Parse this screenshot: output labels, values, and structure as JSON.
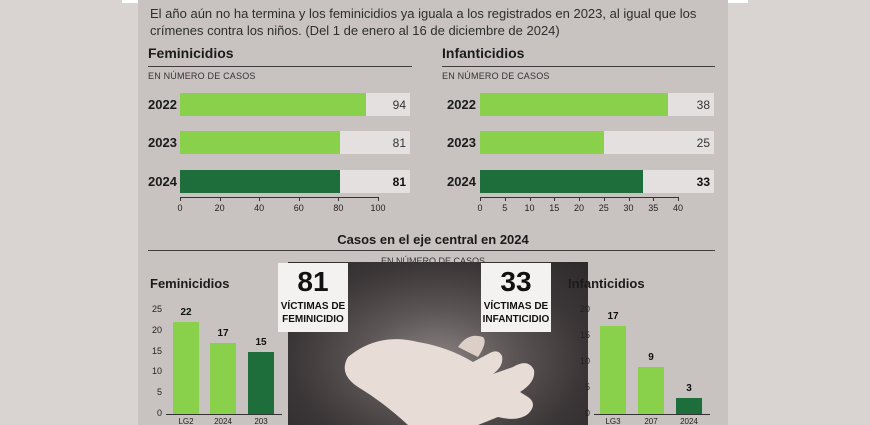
{
  "intro": "El año aún no ha termina y los feminicidios ya iguala a los registrados en 2023, al igual que los crímenes contra los niños. (Del 1 de enero al 16 de diciembre de 2024)",
  "chart_data": [
    {
      "type": "bar",
      "orientation": "horizontal",
      "title": "Feminicidios",
      "subtitle": "EN NÚMERO DE CASOS",
      "categories": [
        "2022",
        "2023",
        "2024"
      ],
      "values": [
        94,
        81,
        81
      ],
      "xlim": [
        0,
        100
      ],
      "ticks": [
        0,
        20,
        40,
        60,
        80,
        100
      ],
      "colors": [
        "#89d14a",
        "#89d14a",
        "#1e6e3b"
      ]
    },
    {
      "type": "bar",
      "orientation": "horizontal",
      "title": "Infanticidios",
      "subtitle": "EN NÚMERO DE CASOS",
      "categories": [
        "2022",
        "2023",
        "2024"
      ],
      "values": [
        38,
        25,
        33
      ],
      "xlim": [
        0,
        40
      ],
      "ticks": [
        0,
        5,
        10,
        15,
        20,
        25,
        30,
        35,
        40
      ],
      "colors": [
        "#89d14a",
        "#89d14a",
        "#1e6e3b"
      ]
    },
    {
      "type": "bar",
      "orientation": "vertical",
      "title": "Feminicidios",
      "values": [
        22,
        17,
        15
      ],
      "categories": [
        "LG2",
        "2024",
        "203"
      ],
      "ylim": [
        0,
        25
      ],
      "ticks": [
        0,
        5,
        10,
        15,
        20,
        25
      ],
      "colors": [
        "#89d14a",
        "#89d14a",
        "#1e6e3b"
      ]
    },
    {
      "type": "bar",
      "orientation": "vertical",
      "title": "Infanticidios",
      "values": [
        17,
        9,
        3
      ],
      "categories": [
        "LG3",
        "207",
        "2024"
      ],
      "ylim": [
        0,
        20
      ],
      "ticks": [
        0,
        5,
        10,
        15,
        20
      ],
      "colors": [
        "#89d14a",
        "#89d14a",
        "#1e6e3b"
      ]
    }
  ],
  "center": {
    "title": "Casos en el eje central en 2024",
    "unit": "EN NÚMERO DE CASOS",
    "card_fem": {
      "number": "81",
      "label_1": "VÍCTIMAS DE",
      "label_2": "FEMINICIDIO"
    },
    "card_inf": {
      "number": "33",
      "label_1": "VÍCTIMAS DE",
      "label_2": "INFANTICIDIO"
    }
  },
  "colors": {
    "light_green": "#89d14a",
    "dark_green": "#1e6e3b",
    "panel": "#c8c3c1"
  }
}
